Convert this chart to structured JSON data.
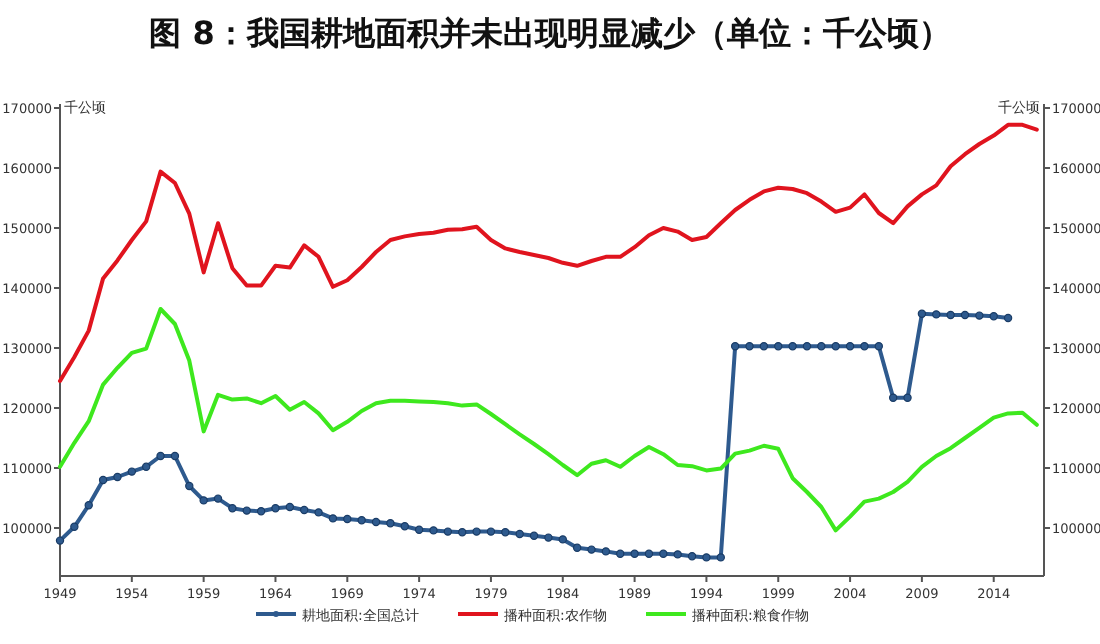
{
  "chart_data": {
    "type": "line",
    "title": "图 8：我国耕地面积并未出现明显减少（单位：千公顷）",
    "ylabel": "千公顷",
    "y2label": "千公顷",
    "x": [
      1949,
      1950,
      1951,
      1952,
      1953,
      1954,
      1955,
      1956,
      1957,
      1958,
      1959,
      1960,
      1961,
      1962,
      1963,
      1964,
      1965,
      1966,
      1967,
      1968,
      1969,
      1970,
      1971,
      1972,
      1973,
      1974,
      1975,
      1976,
      1977,
      1978,
      1979,
      1980,
      1981,
      1982,
      1983,
      1984,
      1985,
      1986,
      1987,
      1988,
      1989,
      1990,
      1991,
      1992,
      1993,
      1994,
      1995,
      1996,
      1997,
      1998,
      1999,
      2000,
      2001,
      2002,
      2003,
      2004,
      2005,
      2006,
      2007,
      2008,
      2009,
      2010,
      2011,
      2012,
      2013,
      2014,
      2015,
      2016,
      2017
    ],
    "series": [
      {
        "name": "耕地面积:全国总计",
        "color": "#2e5a8e",
        "marker": "circle",
        "values": [
          97900,
          100200,
          103800,
          108000,
          108500,
          109400,
          110200,
          112000,
          112000,
          107000,
          104600,
          104900,
          103300,
          102900,
          102800,
          103300,
          103500,
          103000,
          102600,
          101600,
          101500,
          101300,
          101000,
          100800,
          100300,
          99700,
          99600,
          99400,
          99300,
          99400,
          99400,
          99300,
          99000,
          98700,
          98400,
          98100,
          96700,
          96400,
          96100,
          95700,
          95700,
          95700,
          95700,
          95600,
          95300,
          95100,
          95100,
          130300,
          130300,
          130300,
          130300,
          130300,
          130300,
          130300,
          130300,
          130300,
          130300,
          130300,
          121700,
          121700,
          135700,
          135600,
          135500,
          135500,
          135400,
          135300,
          135000,
          null,
          null
        ]
      },
      {
        "name": "播种面积:农作物",
        "color": "#e0141e",
        "marker": "none",
        "values": [
          124500,
          128500,
          132900,
          141600,
          144600,
          148000,
          151100,
          159400,
          157500,
          152400,
          142600,
          150800,
          143300,
          140400,
          140400,
          143700,
          143400,
          147100,
          145200,
          140200,
          141300,
          143500,
          146000,
          148000,
          148600,
          149000,
          149200,
          149700,
          149800,
          150200,
          148000,
          146600,
          146000,
          145500,
          145000,
          144200,
          143700,
          144500,
          145200,
          145200,
          146800,
          148800,
          150000,
          149400,
          148000,
          148500,
          150800,
          153000,
          154700,
          156100,
          156700,
          156500,
          155800,
          154400,
          152700,
          153400,
          155600,
          152500,
          150800,
          153600,
          155600,
          157100,
          160300,
          162300,
          164000,
          165400,
          167200,
          167200,
          166400
        ]
      },
      {
        "name": "播种面积:粮食作物",
        "color": "#3ee81e",
        "marker": "none",
        "values": [
          110200,
          114200,
          117800,
          123900,
          126700,
          129200,
          129900,
          136500,
          134000,
          127900,
          116100,
          122200,
          121400,
          121600,
          120800,
          122000,
          119700,
          121000,
          119100,
          116300,
          117700,
          119500,
          120800,
          121200,
          121200,
          121100,
          121000,
          120800,
          120400,
          120600,
          119000,
          117300,
          115600,
          114000,
          112300,
          110500,
          108800,
          110700,
          111300,
          110200,
          112000,
          113500,
          112300,
          110500,
          110300,
          109600,
          109900,
          112400,
          112900,
          113700,
          113200,
          108300,
          106000,
          103500,
          99600,
          101900,
          104400,
          104900,
          106000,
          107700,
          110200,
          112000,
          113300,
          115000,
          116700,
          118400,
          119100,
          119200,
          117200
        ]
      }
    ],
    "xlim": [
      1949,
      2017.5
    ],
    "xticks": [
      1949,
      1954,
      1959,
      1964,
      1969,
      1974,
      1979,
      1984,
      1989,
      1994,
      1999,
      2004,
      2009,
      2014
    ],
    "ylim": [
      92000,
      170000
    ],
    "yticks": [
      100000,
      110000,
      120000,
      130000,
      140000,
      150000,
      160000,
      170000
    ],
    "y2lim": [
      92000,
      170000
    ],
    "y2ticks": [
      100000,
      110000,
      120000,
      130000,
      140000,
      150000,
      160000,
      170000
    ],
    "legend": "bottom",
    "grid": false
  }
}
